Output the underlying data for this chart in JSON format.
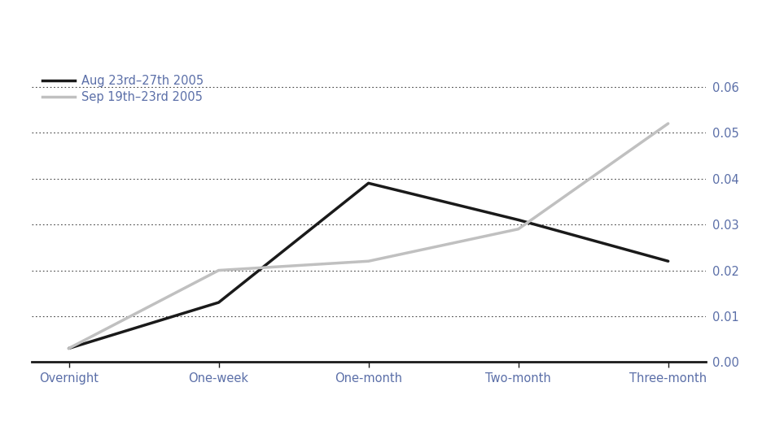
{
  "categories": [
    "Overnight",
    "One-week",
    "One-month",
    "Two-month",
    "Three-month"
  ],
  "series": [
    {
      "label": "Aug 23rd–27th 2005",
      "color": "#1a1a1a",
      "linewidth": 2.5,
      "values": [
        0.003,
        0.013,
        0.039,
        0.031,
        0.022
      ]
    },
    {
      "label": "Sep 19th–23rd 2005",
      "color": "#c0c0c0",
      "linewidth": 2.5,
      "values": [
        0.003,
        0.02,
        0.022,
        0.029,
        0.052
      ]
    }
  ],
  "ylim": [
    0.0,
    0.065
  ],
  "yticks": [
    0.0,
    0.01,
    0.02,
    0.03,
    0.04,
    0.05,
    0.06
  ],
  "grid_color": "#444444",
  "grid_linewidth": 0.8,
  "tick_label_color": "#5b6fa8",
  "legend_text_color": "#5b6fa8",
  "axis_color": "#1a1a1a",
  "background_color": "#ffffff",
  "legend_fontsize": 10.5,
  "tick_fontsize": 10.5
}
